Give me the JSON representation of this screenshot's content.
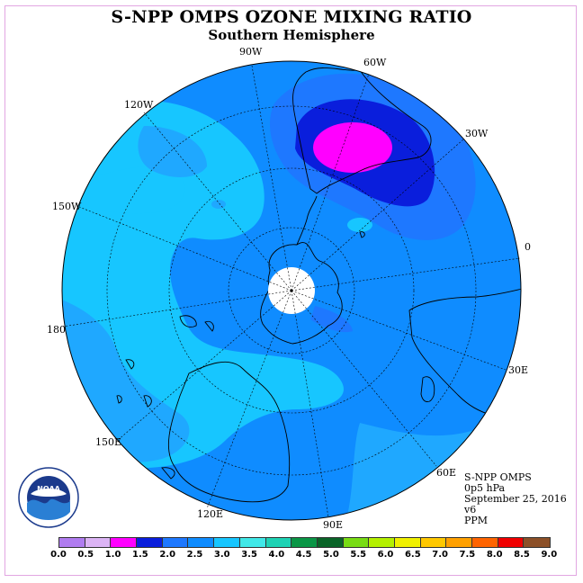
{
  "header": {
    "title": "S-NPP OMPS OZONE MIXING RATIO",
    "subtitle": "Southern Hemisphere"
  },
  "map": {
    "projection": "polar-stereographic-south",
    "longitude_labels": [
      "90W",
      "60W",
      "30W",
      "0",
      "30E",
      "60E",
      "90E",
      "120E",
      "150E",
      "180",
      "150W",
      "120W"
    ],
    "colors": {
      "background_level": "#0f8cff",
      "light_level": "#17c6ff",
      "mid_level": "#1fa8ff",
      "dark_level": "#0a1edc",
      "max_level": "#ff00ff",
      "polar_night": "#ffffff",
      "coastline": "#000000"
    }
  },
  "info": {
    "instrument": "S-NPP OMPS",
    "pressure": "0p5 hPa",
    "date": "September 25, 2016",
    "version": "v6",
    "units": "PPM"
  },
  "colorbar": {
    "labels": [
      "0.0",
      "0.5",
      "1.0",
      "1.5",
      "2.0",
      "2.5",
      "3.0",
      "3.5",
      "4.0",
      "4.5",
      "5.0",
      "5.5",
      "6.0",
      "6.5",
      "7.0",
      "7.5",
      "8.0",
      "8.5",
      "9.0"
    ],
    "colors": [
      "#b07cf0",
      "#dcb4f5",
      "#ff00ff",
      "#0a1edc",
      "#1e78ff",
      "#0f8cff",
      "#17c6ff",
      "#40e8e8",
      "#1ed2b4",
      "#0a9646",
      "#0a6428",
      "#78dc14",
      "#b4f000",
      "#f0f000",
      "#ffc800",
      "#ffa000",
      "#ff6400",
      "#f00000",
      "#8c5028"
    ]
  },
  "logo": {
    "text": "NOAA",
    "ring_text": "NATIONAL OCEANIC AND ATMOSPHERIC ADMINISTRATION · U.S. DEPARTMENT OF COMMERCE"
  }
}
